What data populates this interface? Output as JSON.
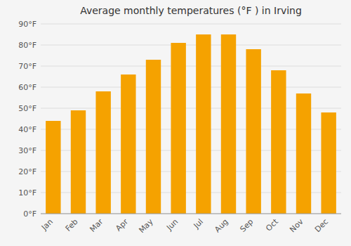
{
  "chart_data": {
    "type": "bar",
    "title": "Average monthly temperatures (°F ) in Irving",
    "categories": [
      "Jan",
      "Feb",
      "Mar",
      "Apr",
      "May",
      "Jun",
      "Jul",
      "Aug",
      "Sep",
      "Oct",
      "Nov",
      "Dec"
    ],
    "values": [
      44,
      49,
      58,
      66,
      73,
      81,
      85,
      85,
      78,
      68,
      57,
      48
    ],
    "color": "#F5A200",
    "ylim": [
      0,
      90
    ],
    "yticks": [
      {
        "value": 0,
        "label": "0°F"
      },
      {
        "value": 10,
        "label": "10°F"
      },
      {
        "value": 20,
        "label": "20°F"
      },
      {
        "value": 30,
        "label": "30°F"
      },
      {
        "value": 40,
        "label": "40°F"
      },
      {
        "value": 50,
        "label": "50°F"
      },
      {
        "value": 60,
        "label": "60°F"
      },
      {
        "value": 70,
        "label": "70°F"
      },
      {
        "value": 80,
        "label": "80°F"
      },
      {
        "value": 90,
        "label": "90°F"
      }
    ],
    "grid": true
  }
}
